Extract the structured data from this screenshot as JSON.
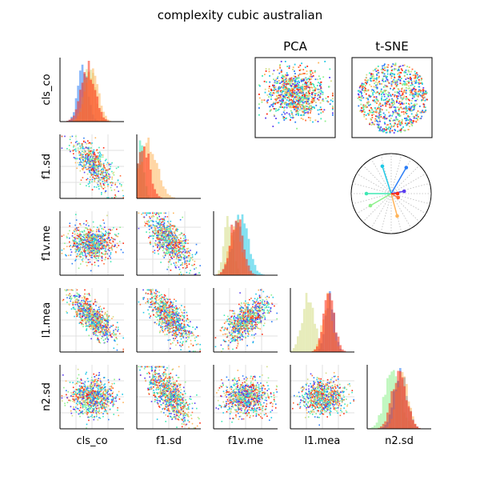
{
  "title": "complexity cubic australian",
  "chart_data": {
    "type": "scatter-matrix",
    "title": "complexity cubic australian",
    "variables": [
      "cls_co",
      "f1.sd",
      "f1v.me",
      "l1.mea",
      "n2.sd"
    ],
    "axis_labels": {
      "rows": [
        "cls_co",
        "f1.sd",
        "f1v.me",
        "l1.mea",
        "n2.sd"
      ],
      "columns": [
        "cls_co",
        "f1.sd",
        "f1v.me",
        "l1.mea",
        "n2.sd"
      ]
    },
    "ticks_visible": false,
    "grid": true,
    "colormap": "rainbow",
    "class_colors": [
      "#5a3cf0",
      "#2b7df6",
      "#1ec8e6",
      "#3ee8b4",
      "#8ef08c",
      "#d4dc84",
      "#ffb45a",
      "#ff6a34",
      "#ff2a10"
    ],
    "diagonal": {
      "type": "histogram",
      "bins": 30,
      "distributions": {
        "cls_co": {
          "series": [
            {
              "color": "#2b7df6",
              "mean": 0.36,
              "sd": 0.08
            },
            {
              "color": "#d4dc84",
              "mean": 0.46,
              "sd": 0.09
            },
            {
              "color": "#ffb45a",
              "mean": 0.5,
              "sd": 0.1
            },
            {
              "color": "#ff2a10",
              "mean": 0.44,
              "sd": 0.11
            }
          ]
        },
        "f1.sd": {
          "series": [
            {
              "color": "#3ee8b4",
              "mean": 0.06,
              "sd": 0.05
            },
            {
              "color": "#ffb45a",
              "mean": 0.18,
              "sd": 0.14
            },
            {
              "color": "#ff2a10",
              "mean": 0.1,
              "sd": 0.1
            }
          ]
        },
        "f1v.me": {
          "series": [
            {
              "color": "#d4dc84",
              "mean": 0.24,
              "sd": 0.07
            },
            {
              "color": "#1ec8e6",
              "mean": 0.42,
              "sd": 0.12
            },
            {
              "color": "#ffb45a",
              "mean": 0.34,
              "sd": 0.09
            },
            {
              "color": "#ff2a10",
              "mean": 0.36,
              "sd": 0.1
            }
          ]
        },
        "l1.mea": {
          "series": [
            {
              "color": "#d4dc84",
              "mean": 0.28,
              "sd": 0.1
            },
            {
              "color": "#2b7df6",
              "mean": 0.62,
              "sd": 0.07
            },
            {
              "color": "#ffb45a",
              "mean": 0.58,
              "sd": 0.08
            },
            {
              "color": "#ff2a10",
              "mean": 0.6,
              "sd": 0.09
            }
          ]
        },
        "n2.sd": {
          "series": [
            {
              "color": "#8ef08c",
              "mean": 0.4,
              "sd": 0.12
            },
            {
              "color": "#2b7df6",
              "mean": 0.52,
              "sd": 0.1
            },
            {
              "color": "#ffb45a",
              "mean": 0.55,
              "sd": 0.09
            },
            {
              "color": "#ff2a10",
              "mean": 0.5,
              "sd": 0.11
            }
          ]
        }
      }
    },
    "pairs": [
      {
        "row": "f1.sd",
        "col": "cls_co",
        "points": 600,
        "trend": "negative",
        "spread": 0.14
      },
      {
        "row": "f1v.me",
        "col": "cls_co",
        "points": 800,
        "trend": "none",
        "spread": 0.13
      },
      {
        "row": "f1v.me",
        "col": "f1.sd",
        "points": 800,
        "trend": "negative",
        "spread": 0.16
      },
      {
        "row": "l1.mea",
        "col": "cls_co",
        "points": 800,
        "trend": "negative",
        "spread": 0.12
      },
      {
        "row": "l1.mea",
        "col": "f1.sd",
        "points": 800,
        "trend": "negative",
        "spread": 0.14
      },
      {
        "row": "l1.mea",
        "col": "f1v.me",
        "points": 800,
        "trend": "positive",
        "spread": 0.13
      },
      {
        "row": "n2.sd",
        "col": "cls_co",
        "points": 800,
        "trend": "none",
        "spread": 0.14
      },
      {
        "row": "n2.sd",
        "col": "f1.sd",
        "points": 800,
        "trend": "negative",
        "spread": 0.16
      },
      {
        "row": "n2.sd",
        "col": "f1v.me",
        "points": 800,
        "trend": "none",
        "spread": 0.14
      },
      {
        "row": "n2.sd",
        "col": "l1.mea",
        "points": 800,
        "trend": "none",
        "spread": 0.13
      }
    ],
    "embeddings": [
      {
        "title": "PCA",
        "type": "scatter",
        "points": 900,
        "shape": "elliptical cloud"
      },
      {
        "title": "t-SNE",
        "type": "scatter",
        "points": 900,
        "shape": "disc"
      }
    ],
    "radar": {
      "type": "radial-star",
      "spokes": 24,
      "rays": [
        {
          "color": "#2b7df6",
          "angle_deg": 60,
          "length": 0.75
        },
        {
          "color": "#1ec8e6",
          "angle_deg": 108,
          "length": 0.72
        },
        {
          "color": "#3ee8b4",
          "angle_deg": 180,
          "length": 0.62
        },
        {
          "color": "#8ef08c",
          "angle_deg": 210,
          "length": 0.6
        },
        {
          "color": "#ffb45a",
          "angle_deg": 285,
          "length": 0.58
        },
        {
          "color": "#ff6a34",
          "angle_deg": 330,
          "length": 0.2
        },
        {
          "color": "#5a3cf0",
          "angle_deg": 10,
          "length": 0.33
        },
        {
          "color": "#ff2a10",
          "angle_deg": 0,
          "length": 0.16
        }
      ]
    }
  }
}
